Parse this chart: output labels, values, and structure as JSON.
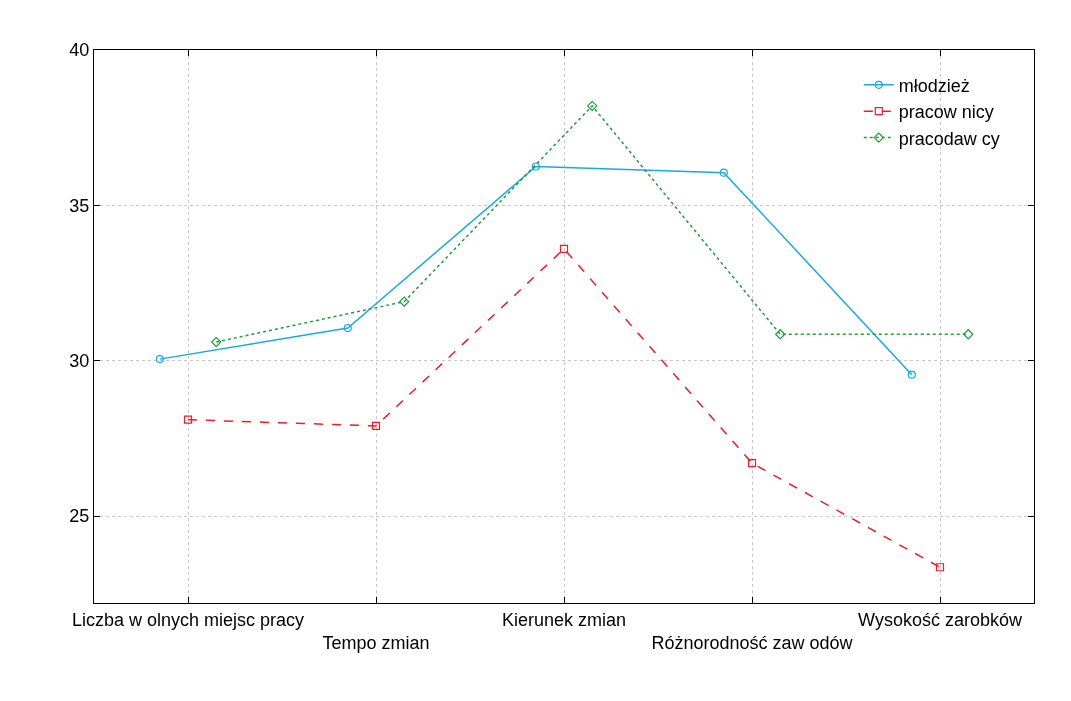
{
  "chart_data": {
    "type": "line",
    "categories": [
      "Liczba w olnych miejsc pracy",
      "Tempo zmian",
      "Kierunek zmian",
      "Różnorodność zaw odów",
      "Wysokość zarobków"
    ],
    "ylim": [
      22.2,
      40
    ],
    "yticks": [
      25,
      30,
      35,
      40
    ],
    "series": [
      {
        "name": "młodzież",
        "color": "#1ba9e1",
        "marker": "circle",
        "line_style": "solid",
        "values": [
          30.05,
          31.05,
          36.25,
          36.05,
          29.55
        ]
      },
      {
        "name": "pracow nicy",
        "color": "#e8202a",
        "marker": "square",
        "line_style": "dashed",
        "values": [
          28.1,
          27.9,
          33.6,
          26.7,
          23.35
        ]
      },
      {
        "name": "pracodaw cy",
        "color": "#1f9e3a",
        "marker": "diamond",
        "line_style": "dotted",
        "values": [
          30.6,
          31.9,
          38.2,
          30.85,
          30.85
        ]
      }
    ],
    "grid": true,
    "legend": "top right"
  }
}
